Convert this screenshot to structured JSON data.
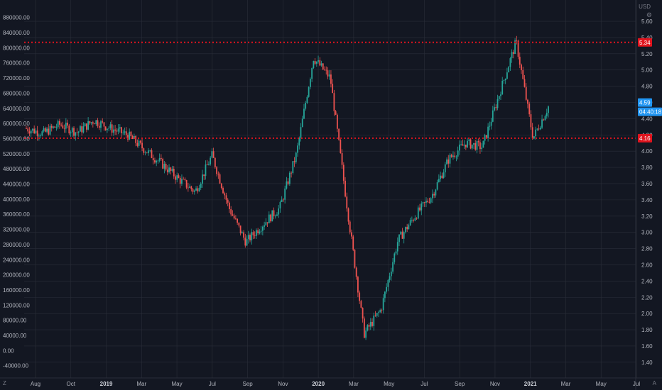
{
  "chart_data": {
    "type": "candlestick",
    "currency": "USD",
    "left_axis": {
      "ticks": [
        "880000.00",
        "840000.00",
        "800000.00",
        "760000.00",
        "720000.00",
        "680000.00",
        "640000.00",
        "600000.00",
        "560000.00",
        "520000.00",
        "480000.00",
        "440000.00",
        "400000.00",
        "360000.00",
        "320000.00",
        "280000.00",
        "240000.00",
        "200000.00",
        "160000.00",
        "120000.00",
        "80000.00",
        "40000.00",
        "0.00",
        "-40000.00"
      ],
      "range": [
        -48000,
        900000
      ]
    },
    "right_axis": {
      "ticks": [
        "5.60",
        "5.40",
        "5.20",
        "5.00",
        "4.80",
        "4.60",
        "4.40",
        "4.20",
        "4.00",
        "3.80",
        "3.60",
        "3.40",
        "3.20",
        "3.00",
        "2.80",
        "2.60",
        "2.40",
        "2.20",
        "2.00",
        "1.80",
        "1.60",
        "1.40"
      ],
      "range": [
        1.32,
        5.74
      ]
    },
    "x_axis": {
      "labels": [
        {
          "text": "Aug",
          "bold": false
        },
        {
          "text": "Oct",
          "bold": false
        },
        {
          "text": "2019",
          "bold": true
        },
        {
          "text": "Mar",
          "bold": false
        },
        {
          "text": "May",
          "bold": false
        },
        {
          "text": "Jul",
          "bold": false
        },
        {
          "text": "Sep",
          "bold": false
        },
        {
          "text": "Nov",
          "bold": false
        },
        {
          "text": "2020",
          "bold": true
        },
        {
          "text": "Mar",
          "bold": false
        },
        {
          "text": "May",
          "bold": false
        },
        {
          "text": "Jul",
          "bold": false
        },
        {
          "text": "Sep",
          "bold": false
        },
        {
          "text": "Nov",
          "bold": false
        },
        {
          "text": "2021",
          "bold": true
        },
        {
          "text": "Mar",
          "bold": false
        },
        {
          "text": "May",
          "bold": false
        },
        {
          "text": "Jul",
          "bold": false
        }
      ]
    },
    "price_path": [
      {
        "x": "Aug 2018",
        "y": 4.28
      },
      {
        "x": "Sep 2018",
        "y": 4.22
      },
      {
        "x": "Oct 2018",
        "y": 4.33
      },
      {
        "x": "Nov 2018",
        "y": 4.23
      },
      {
        "x": "Dec 2018",
        "y": 4.38
      },
      {
        "x": "Jan 2019",
        "y": 4.28
      },
      {
        "x": "Feb 2019",
        "y": 4.2
      },
      {
        "x": "Mar 2019",
        "y": 4.02
      },
      {
        "x": "Apr 2019",
        "y": 3.85
      },
      {
        "x": "May 2019",
        "y": 3.66
      },
      {
        "x": "Jun 2019",
        "y": 3.5
      },
      {
        "x": "Jul 2019",
        "y": 3.95
      },
      {
        "x": "Aug 2019",
        "y": 3.3
      },
      {
        "x": "Sep 2019",
        "y": 2.88
      },
      {
        "x": "Oct 2019",
        "y": 3.1
      },
      {
        "x": "Nov 2019",
        "y": 3.3
      },
      {
        "x": "Dec 2019",
        "y": 3.97
      },
      {
        "x": "Jan 2020",
        "y": 5.15
      },
      {
        "x": "Feb 2020",
        "y": 4.9
      },
      {
        "x": "Mar 2020",
        "y": 3.3
      },
      {
        "x": "Apr 2020",
        "y": 1.75
      },
      {
        "x": "May 2020",
        "y": 2.05
      },
      {
        "x": "Jun 2020",
        "y": 2.9
      },
      {
        "x": "Jul 2020",
        "y": 3.2
      },
      {
        "x": "Aug 2020",
        "y": 3.45
      },
      {
        "x": "Sep 2020",
        "y": 3.9
      },
      {
        "x": "Oct 2020",
        "y": 4.1
      },
      {
        "x": "Nov 2020",
        "y": 4.05
      },
      {
        "x": "Dec 2020",
        "y": 4.7
      },
      {
        "x": "Jan 2021",
        "y": 5.35
      },
      {
        "x": "Feb 2021",
        "y": 4.16
      },
      {
        "x": "Feb 2021",
        "y": 4.59
      }
    ],
    "horizontal_lines": [
      {
        "value": 5.34,
        "color": "#e0141e",
        "style": "dotted"
      },
      {
        "value": 4.16,
        "color": "#e0141e",
        "style": "dotted"
      }
    ],
    "badges": [
      {
        "text": "5.34",
        "color": "#e0141e"
      },
      {
        "text": "4.59",
        "color": "#2196f3"
      },
      {
        "text": "04:40:18",
        "color": "#2196f3"
      },
      {
        "text": "4.16",
        "color": "#e0141e"
      }
    ],
    "colors": {
      "up": "#26a69a",
      "down": "#ef5350",
      "background": "#131722",
      "grid": "#2a2e39"
    },
    "grid": true
  },
  "footer": {
    "timezone_label": "Z",
    "auto_label": "A"
  },
  "icons": {
    "settings": "gear-icon"
  }
}
